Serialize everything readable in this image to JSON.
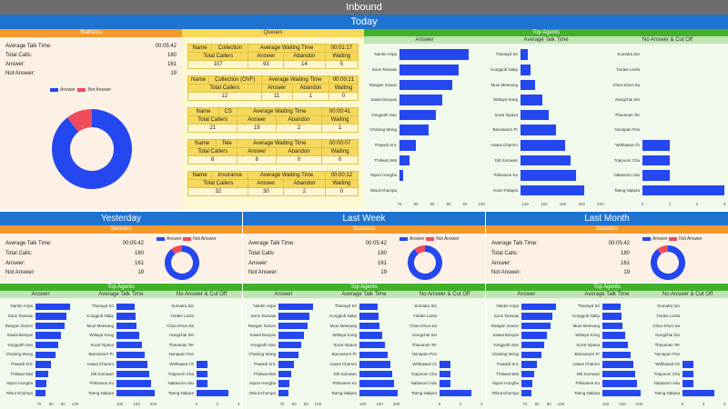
{
  "window_title": "Inbound",
  "colors": {
    "answer": "#2447f0",
    "not_answer": "#ef4b5d",
    "band": "#1f73d0",
    "stats_head": "#f39a2c",
    "agents_head": "#43b02a"
  },
  "today": {
    "label": "Today",
    "statistics": {
      "header": "Statistics",
      "rows": [
        {
          "label": "Average Talk Time:",
          "value": "00:05:42"
        },
        {
          "label": "Total Calls:",
          "value": "180"
        },
        {
          "label": "Answer:",
          "value": "161"
        },
        {
          "label": "Not Answer:",
          "value": "19"
        }
      ],
      "legend": {
        "answer": "Answer",
        "not_answer": "Not Answer"
      },
      "pie": {
        "answer": 161,
        "not_answer": 19
      }
    },
    "queues": {
      "header": "Queues",
      "items": [
        {
          "name_label": "Name",
          "name": "Collection",
          "awt_label": "Average Waiting Time",
          "awt": "00:01:17",
          "total_label": "Total Callers",
          "answer_label": "Answer",
          "abandon_label": "Abandon",
          "waiting_label": "Waiting",
          "total": "107",
          "answer": "93",
          "abandon": "14",
          "waiting": "5"
        },
        {
          "name_label": "Name",
          "name": "Collection (OVF)",
          "awt_label": "Average Waiting Time",
          "awt": "00:00:21",
          "total_label": "Total Callers",
          "answer_label": "Answer",
          "abandon_label": "Abandon",
          "waiting_label": "Waiting",
          "total": "12",
          "answer": "11",
          "abandon": "1",
          "waiting": "0"
        },
        {
          "name_label": "Name",
          "name": "CS",
          "awt_label": "Average Waiting Time",
          "awt": "00:00:41",
          "total_label": "Total Callers",
          "answer_label": "Answer",
          "abandon_label": "Abandon",
          "waiting_label": "Waiting",
          "total": "21",
          "answer": "19",
          "abandon": "2",
          "waiting": "1"
        },
        {
          "name_label": "Name",
          "name": "Tele",
          "awt_label": "Average Waiting Time",
          "awt": "00:00:07",
          "total_label": "Total Callers",
          "answer_label": "Answer",
          "abandon_label": "Abandon",
          "waiting_label": "Waiting",
          "total": "8",
          "answer": "8",
          "abandon": "0",
          "waiting": "0"
        },
        {
          "name_label": "Name",
          "name": "Insurance",
          "awt_label": "Average Waiting Time",
          "awt": "00:00:12",
          "total_label": "Total Callers",
          "answer_label": "Answer",
          "abandon_label": "Abandon",
          "waiting_label": "Waiting",
          "total": "32",
          "answer": "30",
          "abandon": "2",
          "waiting": "0"
        }
      ]
    },
    "top_agents": {
      "header": "Top Agents",
      "charts": [
        {
          "title": "Answer",
          "labels": [
            "Nantin Aripa",
            "Suns Tavisaw",
            "Raegan Gason",
            "Sawai Bunyas",
            "Yongpoth San",
            "Chalong Wong",
            "Pawadi Sric",
            "Thitiwat Wat",
            "Nipon Hongha",
            "Wisut Khumpa"
          ],
          "values": [
            96,
            93,
            91,
            88,
            86,
            84,
            80,
            78,
            76,
            75
          ],
          "ticks": [
            "75",
            "80",
            "85",
            "90",
            "95",
            "100"
          ],
          "min": 75,
          "max": 100
        },
        {
          "title": "Average Talk Time",
          "labels": [
            "Thanayd Sri",
            "Kongpob Nakp",
            "Muoi Meesang",
            "Wittaya Kong",
            "Surat Vipava",
            "Bannasorn Pr",
            "Aawut Chamro",
            "Dilt Somwan",
            "Pittisanee Ku",
            "Kunn Palapol"
          ],
          "values": [
            143,
            146,
            150,
            158,
            165,
            173,
            182,
            188,
            194,
            203
          ],
          "ticks": [
            "140",
            "160",
            "180",
            "200",
            "220"
          ],
          "min": 135,
          "max": 222
        },
        {
          "title": "No Answer & Cut Off",
          "labels": [
            "Sumatra Sin",
            "Yindee Leela",
            "Chao-Khun-Sa",
            "Nongchai Sin",
            "Thavanan Ter",
            "Nonapan Pon",
            "Witthawat Ch",
            "Traipoom Cha",
            "Nattasorn Adu",
            "Taeng Nakpra"
          ],
          "values": [
            0,
            0,
            0,
            0,
            0,
            0,
            1,
            1,
            1,
            3
          ],
          "ticks": [
            "0",
            "1",
            "2",
            "3"
          ],
          "min": 0,
          "max": 3
        }
      ]
    }
  },
  "periods": [
    {
      "label": "Yesterday"
    },
    {
      "label": "Last Week"
    },
    {
      "label": "Last Month"
    }
  ],
  "period_block": {
    "statistics": {
      "header": "Statistics",
      "rows": [
        {
          "label": "Average Talk Time:",
          "value": "00:05:42"
        },
        {
          "label": "Total Calls:",
          "value": "180"
        },
        {
          "label": "Answer:",
          "value": "161"
        },
        {
          "label": "Not Answer:",
          "value": "19"
        }
      ],
      "legend": {
        "answer": "Answer",
        "not_answer": "Not Answer"
      },
      "pie": {
        "answer": 161,
        "not_answer": 19
      }
    },
    "top_agents": {
      "header": "Top Agents",
      "charts": [
        {
          "title": "Answer",
          "labels": [
            "Nantin Aripa",
            "Suns Tavisaw",
            "Raegan Gason",
            "Sawai Bunyas",
            "Yongpoth San",
            "Chalong Wong",
            "Pawadi Sric",
            "Thitiwat Wat",
            "Nipon Hongha",
            "Wisut Khumpa"
          ],
          "values": [
            96,
            93,
            91,
            88,
            86,
            84,
            80,
            78,
            76,
            75
          ],
          "ticks": [
            "70",
            "80",
            "90",
            "100"
          ],
          "min": 67,
          "max": 102
        },
        {
          "title": "Average Talk Time",
          "labels": [
            "Thanayd Sri",
            "Kongpob Nakp",
            "Muoi Meesang",
            "Wittaya Kong",
            "Surat Vipava",
            "Bannasorn Pr",
            "Aawut Chamro",
            "Dilt Somwan",
            "Pittisanee Ku",
            "Taeng Nakpra"
          ],
          "values": [
            143,
            146,
            150,
            158,
            165,
            173,
            182,
            188,
            194,
            203
          ],
          "ticks": [
            "100",
            "150",
            "200"
          ],
          "min": 90,
          "max": 215
        },
        {
          "title": "No Answer & Cut Off",
          "labels": [
            "Sumatra Sin",
            "Yindee Leela",
            "Chao-Khun-Sa",
            "Nongchai Sin",
            "Thavanan Ter",
            "Nonapan Pon",
            "Witthawat Ch",
            "Traipoom Cha",
            "Nattasorn Adu",
            "Taeng Nakpra"
          ],
          "values": [
            0,
            0,
            0,
            0,
            0,
            0,
            1,
            1,
            1,
            3
          ],
          "ticks": [
            "0",
            "2",
            "4"
          ],
          "min": 0,
          "max": 4
        }
      ]
    }
  }
}
